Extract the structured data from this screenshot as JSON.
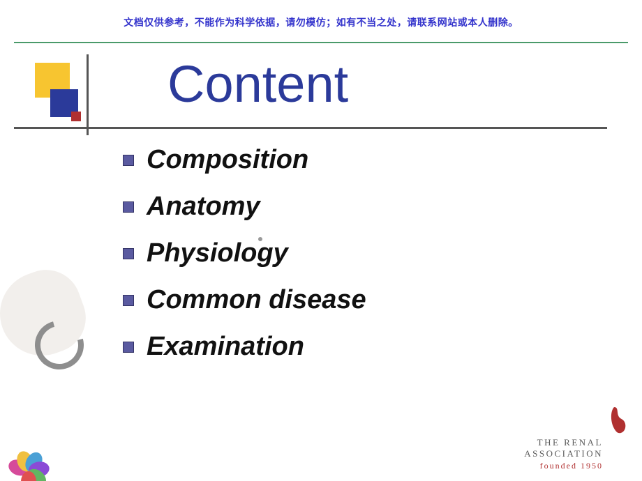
{
  "disclaimer": "文档仅供参考，不能作为科学依据，请勿模仿；如有不当之处，请联系网站或本人删除。",
  "title": "Content",
  "title_color": "#2b3a9a",
  "title_fontsize": 74,
  "bullets": [
    "Composition",
    "Anatomy",
    "Physiology",
    "Common disease",
    "Examination"
  ],
  "bullet_marker_color": "#5a5aa0",
  "bullet_fontsize": 38,
  "decor": {
    "yellow": "#f7c530",
    "blue": "#2b3a9a",
    "red": "#b03030",
    "line": "#555555"
  },
  "divider_color": "#4a9a6a",
  "flower_petals": [
    {
      "color": "#d64a9a",
      "rot": -70
    },
    {
      "color": "#f0c040",
      "rot": -20
    },
    {
      "color": "#4aa0d6",
      "rot": 30
    },
    {
      "color": "#8a4ad6",
      "rot": 80
    },
    {
      "color": "#62b562",
      "rot": 130
    },
    {
      "color": "#e05050",
      "rot": 180
    }
  ],
  "renal": {
    "line1": "THE RENAL",
    "line2": "ASSOCIATION",
    "founded": "founded 1950",
    "mark_color": "#b03030"
  }
}
